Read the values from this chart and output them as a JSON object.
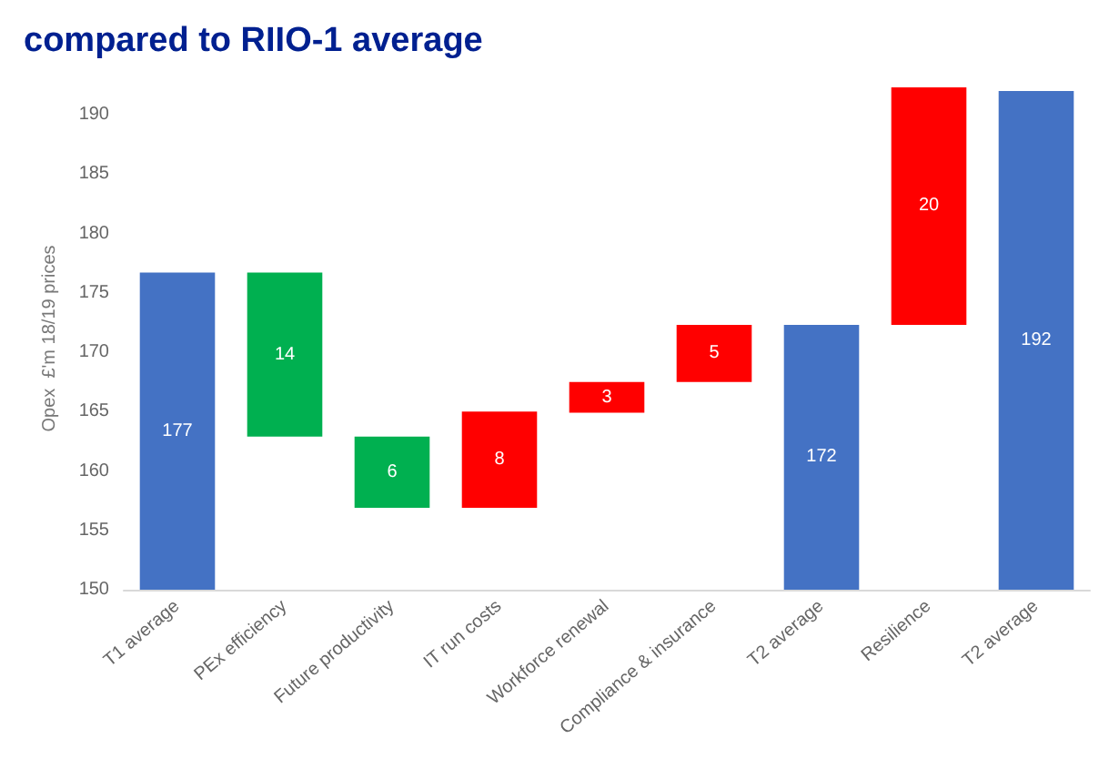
{
  "chart_data": {
    "type": "bar",
    "title": "compared to RIIO-1 average",
    "ylabel": "Opex  £'m 18/19 prices",
    "categories": [
      "T1 average",
      "PEx efficiency",
      "Future productivity",
      "IT run costs",
      "Workforce renewal",
      "Compliance & insurance",
      "T2 average",
      "Resilience",
      "T2 average"
    ],
    "base": [
      150,
      162.9,
      156.9,
      156.9,
      164.9,
      167.5,
      150,
      172.3,
      150
    ],
    "values": [
      26.7,
      13.8,
      6,
      8.1,
      2.6,
      4.8,
      22.3,
      20,
      42
    ],
    "value_labels": [
      "177",
      "14",
      "6",
      "8",
      "3",
      "5",
      "172",
      "20",
      "192"
    ],
    "colors": [
      "#4472c4",
      "#00b050",
      "#00b050",
      "#ff0000",
      "#ff0000",
      "#ff0000",
      "#4472c4",
      "#ff0000",
      "#4472c4"
    ],
    "ylim": [
      150,
      192.3
    ],
    "yticks": [
      150,
      155,
      160,
      165,
      170,
      175,
      180,
      185,
      190
    ],
    "grid": false
  }
}
